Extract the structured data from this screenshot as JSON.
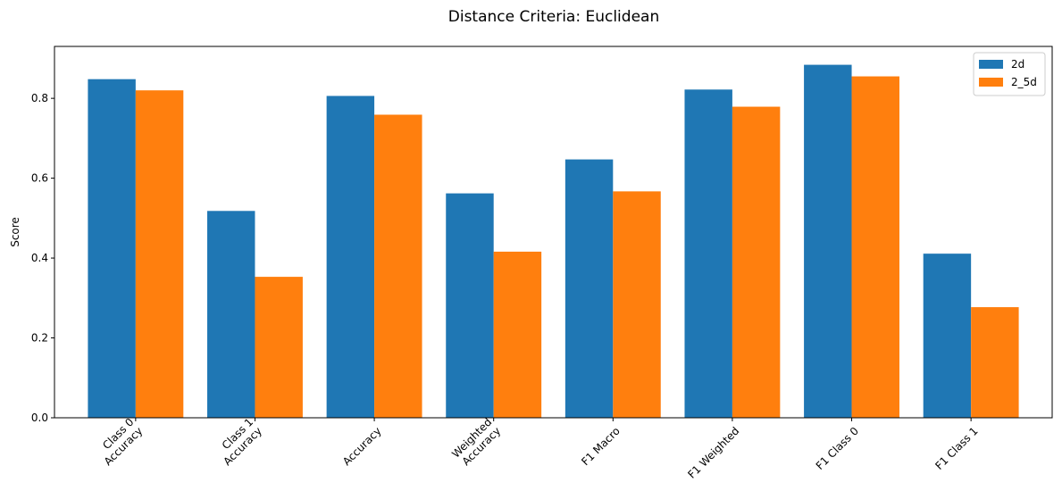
{
  "chart_data": {
    "type": "bar",
    "title": "Distance Criteria: Euclidean",
    "xlabel": "",
    "ylabel": "Score",
    "ylim": [
      0,
      0.93
    ],
    "yticks": [
      "0.0",
      "0.2",
      "0.4",
      "0.6",
      "0.8"
    ],
    "categories": [
      [
        "Class 0",
        "Accuracy"
      ],
      [
        "Class 1",
        "Accuracy"
      ],
      [
        "Accuracy"
      ],
      [
        "Weighted",
        "Accuracy"
      ],
      [
        "F1 Macro"
      ],
      [
        "F1 Weighted"
      ],
      [
        "F1 Class 0"
      ],
      [
        "F1 Class 1"
      ]
    ],
    "series": [
      {
        "name": "2d",
        "color": "#1f77b4",
        "values": [
          0.848,
          0.518,
          0.806,
          0.562,
          0.647,
          0.822,
          0.884,
          0.411
        ]
      },
      {
        "name": "2_5d",
        "color": "#ff7f0e",
        "values": [
          0.82,
          0.353,
          0.759,
          0.416,
          0.567,
          0.779,
          0.855,
          0.277
        ]
      }
    ],
    "legend_position": "top-right",
    "grid": false
  }
}
